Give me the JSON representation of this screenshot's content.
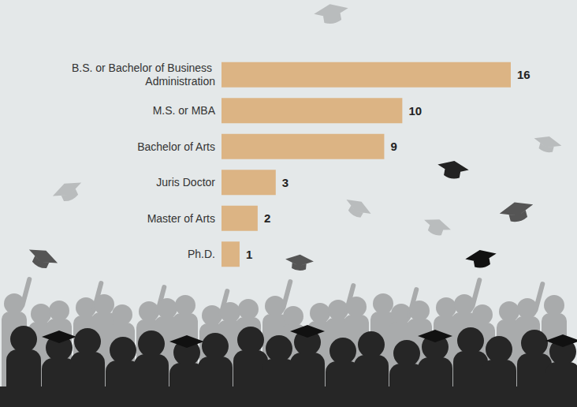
{
  "chart_data": {
    "type": "bar",
    "orientation": "horizontal",
    "categories": [
      "B.S. or Bachelor of Business Administration",
      "M.S. or MBA",
      "Bachelor of Arts",
      "Juris Doctor",
      "Master of Arts",
      "Ph.D."
    ],
    "values": [
      16,
      10,
      9,
      3,
      2,
      1
    ],
    "color": "#dcb484",
    "xlim": [
      0,
      16
    ],
    "data_labels": true,
    "tick_labels": "y",
    "grid": false
  }
}
